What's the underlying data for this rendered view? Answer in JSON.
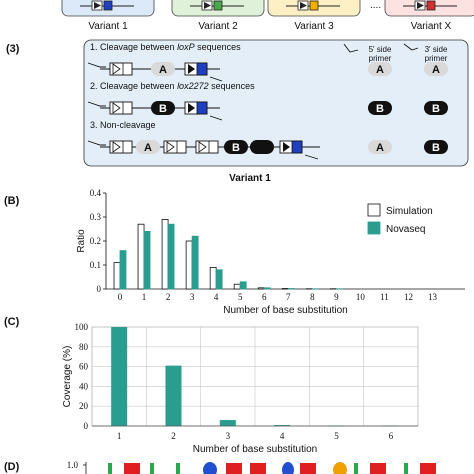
{
  "panel_a": {
    "variants": [
      {
        "label": "Variant 1",
        "color": "#dbe9f8",
        "mark": "#1f3fbf"
      },
      {
        "label": "Variant 2",
        "color": "#dff1d8",
        "mark": "#4aa84a"
      },
      {
        "label": "Variant 3",
        "color": "#fdf0c4",
        "mark": "#f0b000"
      },
      {
        "label": "Variant X",
        "color": "#fde2e2",
        "mark": "#d03030"
      }
    ],
    "ellipsis": "...."
  },
  "panel_3": {
    "label": "(3)",
    "header_5prime": "5' side\nprimer",
    "header_3prime": "3' side\nprimer",
    "rows": [
      {
        "text_pre": "1. Cleavage between ",
        "text_ital": "loxP",
        "text_post": " sequences",
        "left": "A",
        "right": "A"
      },
      {
        "text_pre": "2. Cleavage between ",
        "text_ital": "lox2272",
        "text_post": " sequences",
        "left": "B",
        "right": "B"
      },
      {
        "text_pre": "3. Non-cleavage",
        "text_ital": "",
        "text_post": "",
        "left": "A",
        "right": "B"
      }
    ],
    "caption": "Variant 1"
  },
  "panel_b": {
    "label": "(B)",
    "chart_data": {
      "type": "bar",
      "categories": [
        "0",
        "1",
        "2",
        "3",
        "4",
        "5",
        "6",
        "7",
        "8",
        "9",
        "10",
        "11",
        "12",
        "13"
      ],
      "series": [
        {
          "name": "Simulation",
          "values": [
            0.11,
            0.27,
            0.29,
            0.2,
            0.09,
            0.02,
            0.005,
            0.002,
            0.001,
            0.001,
            0,
            0,
            0,
            0
          ],
          "color": "#ffffff"
        },
        {
          "name": "Novaseq",
          "values": [
            0.16,
            0.24,
            0.27,
            0.22,
            0.08,
            0.03,
            0.005,
            0.002,
            0.001,
            0.001,
            0,
            0,
            0,
            0
          ],
          "color": "#2a9d8f"
        }
      ],
      "xlabel": "Number of base substitution",
      "ylabel": "Ratio",
      "ylim": [
        0,
        0.4
      ],
      "yticks": [
        "0",
        "0.1",
        "0.2",
        "0.3",
        "0.4"
      ],
      "legend": "top-right"
    }
  },
  "panel_c": {
    "label": "(C)",
    "chart_data": {
      "type": "bar",
      "categories": [
        "1",
        "2",
        "3",
        "4",
        "5",
        "6"
      ],
      "series": [
        {
          "values": [
            100,
            61,
            6,
            1,
            0.5,
            0.5
          ],
          "color": "#2a9d8f"
        }
      ],
      "xlabel": "Number of base substitution",
      "ylabel": "Coverage (%)",
      "ylim": [
        0,
        100
      ],
      "yticks": [
        "0",
        "20",
        "40",
        "60",
        "80",
        "100"
      ],
      "grid": true
    }
  },
  "panel_d": {
    "label": "(D)",
    "ytick": "1.0"
  }
}
